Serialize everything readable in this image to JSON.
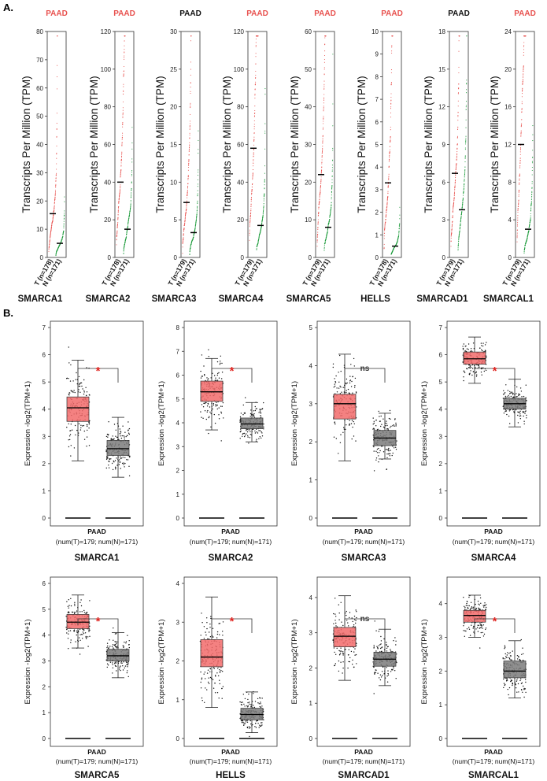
{
  "panels": {
    "a_label": "A.",
    "b_label": "B."
  },
  "colors": {
    "tumor": "#e8524f",
    "normal": "#1b9a3a",
    "box_tumor": "#f26b6b",
    "box_normal": "#7b7b7b",
    "sig_star": "#e0221e",
    "ns_text": "#333333"
  },
  "chart_data": [
    {
      "type": "scatter",
      "panel": "A",
      "description": "Dot plots of gene expression in PAAD tumor (T) vs normal (N)",
      "ylabel": "Transcripts Per Million (TPM)",
      "genes": [
        {
          "gene": "SMARCA1",
          "title": "PAAD",
          "title_color": "red",
          "ymax": 80,
          "yticks": [
            0,
            10,
            20,
            30,
            40,
            50,
            60,
            70,
            80
          ],
          "xlabels": [
            "T (n=178)",
            "N (n=171)"
          ],
          "median_t": 15.5,
          "median_n": 5
        },
        {
          "gene": "SMARCA2",
          "title": "PAAD",
          "title_color": "red",
          "ymax": 120,
          "yticks": [
            0,
            20,
            40,
            60,
            80,
            100,
            120
          ],
          "xlabels": [
            "T (n=178)",
            "N (n=171)"
          ],
          "median_t": 40,
          "median_n": 15
        },
        {
          "gene": "SMARCA3",
          "title": "PAAD",
          "title_color": "black",
          "ymax": 30,
          "yticks": [
            0,
            5,
            10,
            15,
            20,
            25,
            30
          ],
          "xlabels": [
            "T (n=179)",
            "N (n=171)"
          ],
          "median_t": 7.3,
          "median_n": 3.3
        },
        {
          "gene": "SMARCA4",
          "title": "PAAD",
          "title_color": "red",
          "ymax": 120,
          "yticks": [
            0,
            20,
            40,
            60,
            80,
            100,
            120
          ],
          "xlabels": [
            "T (n=179)",
            "N (n=171)"
          ],
          "median_t": 58,
          "median_n": 17
        },
        {
          "gene": "SMARCA5",
          "title": "PAAD",
          "title_color": "red",
          "ymax": 60,
          "yticks": [
            0,
            10,
            20,
            30,
            40,
            50,
            60
          ],
          "xlabels": [
            "T (n=179)",
            "N (n=171)"
          ],
          "median_t": 22,
          "median_n": 8
        },
        {
          "gene": "HELLS",
          "title": "PAAD",
          "title_color": "red",
          "ymax": 10,
          "yticks": [
            0,
            1,
            2,
            3,
            4,
            5,
            6,
            7,
            8,
            9,
            10
          ],
          "xlabels": [
            "T (n=178)",
            "N (n=171)"
          ],
          "median_t": 3.3,
          "median_n": 0.5
        },
        {
          "gene": "SMARCAD1",
          "title": "PAAD",
          "title_color": "black",
          "ymax": 18,
          "yticks": [
            0,
            3,
            6,
            9,
            12,
            15,
            18
          ],
          "xlabels": [
            "T (n=179)",
            "N (n=171)"
          ],
          "median_t": 6.7,
          "median_n": 3.8
        },
        {
          "gene": "SMARCAL1",
          "title": "PAAD",
          "title_color": "red",
          "ymax": 24,
          "yticks": [
            0,
            4,
            8,
            12,
            16,
            20,
            24
          ],
          "xlabels": [
            "T (n=179)",
            "N (n=171)"
          ],
          "median_t": 12,
          "median_n": 3
        }
      ]
    },
    {
      "type": "box",
      "panel": "B",
      "description": "Box plots of log2(TPM+1) expression, tumor (red) vs normal (grey)",
      "ylabel": "Expression -log2(TPM+1)",
      "xlabel": "PAAD",
      "xsublabel": "(num(T)=179; num(N)=171)",
      "genes": [
        {
          "gene": "SMARCA1",
          "ymax": 7,
          "yticks": [
            0,
            1,
            2,
            3,
            4,
            5,
            6,
            7
          ],
          "sig": "*",
          "tumor": {
            "q1": 3.55,
            "med": 4.05,
            "q3": 4.45,
            "lo": 2.1,
            "hi": 5.8
          },
          "normal": {
            "q1": 2.3,
            "med": 2.55,
            "q3": 2.85,
            "lo": 1.5,
            "hi": 3.7
          }
        },
        {
          "gene": "SMARCA2",
          "ymax": 8,
          "yticks": [
            0,
            1,
            2,
            3,
            4,
            5,
            6,
            7,
            8
          ],
          "sig": "*",
          "tumor": {
            "q1": 4.9,
            "med": 5.3,
            "q3": 5.75,
            "lo": 3.7,
            "hi": 6.7
          },
          "normal": {
            "q1": 3.75,
            "med": 3.95,
            "q3": 4.2,
            "lo": 3.2,
            "hi": 4.85
          }
        },
        {
          "gene": "SMARCA3",
          "ymax": 5,
          "yticks": [
            0,
            1,
            2,
            3,
            4,
            5
          ],
          "sig": "ns",
          "tumor": {
            "q1": 2.6,
            "med": 3.0,
            "q3": 3.25,
            "lo": 1.5,
            "hi": 4.3
          },
          "normal": {
            "q1": 1.9,
            "med": 2.1,
            "q3": 2.3,
            "lo": 1.55,
            "hi": 2.75
          }
        },
        {
          "gene": "SMARCA4",
          "ymax": 7,
          "yticks": [
            0,
            1,
            2,
            3,
            4,
            5,
            6,
            7
          ],
          "sig": "*",
          "tumor": {
            "q1": 5.65,
            "med": 5.85,
            "q3": 6.1,
            "lo": 4.95,
            "hi": 6.65
          },
          "normal": {
            "q1": 4.0,
            "med": 4.2,
            "q3": 4.4,
            "lo": 3.35,
            "hi": 5.1
          }
        },
        {
          "gene": "SMARCA5",
          "ymax": 6,
          "yticks": [
            0,
            1,
            2,
            3,
            4,
            5,
            6
          ],
          "sig": "*",
          "tumor": {
            "q1": 4.25,
            "med": 4.5,
            "q3": 4.8,
            "lo": 3.5,
            "hi": 5.55
          },
          "normal": {
            "q1": 3.0,
            "med": 3.2,
            "q3": 3.45,
            "lo": 2.35,
            "hi": 4.1
          }
        },
        {
          "gene": "HELLS",
          "ymax": 4,
          "yticks": [
            0,
            1,
            2,
            3,
            4
          ],
          "sig": "*",
          "tumor": {
            "q1": 1.85,
            "med": 2.1,
            "q3": 2.55,
            "lo": 0.8,
            "hi": 3.65
          },
          "normal": {
            "q1": 0.48,
            "med": 0.62,
            "q3": 0.78,
            "lo": 0.15,
            "hi": 1.2
          }
        },
        {
          "gene": "SMARCAD1",
          "ymax": 4.4,
          "yticks": [
            0,
            1,
            2,
            3,
            4
          ],
          "sig": "ns",
          "tumor": {
            "q1": 2.6,
            "med": 2.9,
            "q3": 3.15,
            "lo": 1.65,
            "hi": 4.05
          },
          "normal": {
            "q1": 2.05,
            "med": 2.25,
            "q3": 2.45,
            "lo": 1.5,
            "hi": 3.1
          }
        },
        {
          "gene": "SMARCAL1",
          "ymax": 4.6,
          "yticks": [
            0,
            1,
            2,
            3,
            4
          ],
          "sig": "*",
          "tumor": {
            "q1": 3.45,
            "med": 3.65,
            "q3": 3.8,
            "lo": 3.0,
            "hi": 4.25
          },
          "normal": {
            "q1": 1.8,
            "med": 2.0,
            "q3": 2.3,
            "lo": 1.2,
            "hi": 2.9
          }
        }
      ]
    }
  ]
}
